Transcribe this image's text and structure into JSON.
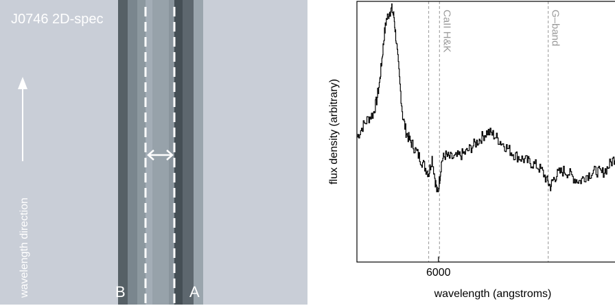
{
  "left_panel": {
    "title": "J0746 2D-spec",
    "direction_label": "wavelength direction",
    "trace_labels": [
      "B",
      "A"
    ]
  },
  "chart_data": {
    "type": "line",
    "title": "",
    "xlabel": "wavelength (angstroms)",
    "ylabel": "flux density (arbitrary)",
    "xlim": [
      5250,
      7650
    ],
    "ylim": [
      0,
      1
    ],
    "xticks": [
      6000
    ],
    "xticklabels": [
      "6000"
    ],
    "grid": false,
    "annotations": [
      {
        "label": "CaII H&K",
        "lines": [
          5910,
          6010
        ]
      },
      {
        "label": "G–band",
        "lines": [
          7010
        ]
      }
    ],
    "series": [
      {
        "name": "",
        "color": "#000000",
        "x": [
          5250,
          5300,
          5350,
          5400,
          5430,
          5460,
          5480,
          5500,
          5520,
          5550,
          5570,
          5590,
          5610,
          5640,
          5670,
          5700,
          5730,
          5760,
          5800,
          5840,
          5880,
          5910,
          5940,
          5970,
          5990,
          6010,
          6030,
          6060,
          6100,
          6150,
          6200,
          6250,
          6300,
          6350,
          6400,
          6450,
          6500,
          6550,
          6600,
          6650,
          6700,
          6750,
          6800,
          6850,
          6900,
          6950,
          7000,
          7030,
          7060,
          7100,
          7150,
          7200,
          7250,
          7300,
          7350,
          7400,
          7450,
          7500,
          7550,
          7600,
          7650
        ],
        "y": [
          0.48,
          0.52,
          0.55,
          0.57,
          0.62,
          0.7,
          0.78,
          0.87,
          0.93,
          0.96,
          0.97,
          0.94,
          0.85,
          0.7,
          0.56,
          0.5,
          0.47,
          0.45,
          0.42,
          0.39,
          0.36,
          0.34,
          0.4,
          0.31,
          0.26,
          0.32,
          0.39,
          0.41,
          0.4,
          0.4,
          0.41,
          0.42,
          0.44,
          0.46,
          0.48,
          0.5,
          0.49,
          0.47,
          0.45,
          0.43,
          0.41,
          0.4,
          0.39,
          0.38,
          0.37,
          0.35,
          0.31,
          0.29,
          0.32,
          0.34,
          0.35,
          0.34,
          0.32,
          0.31,
          0.33,
          0.34,
          0.35,
          0.34,
          0.36,
          0.39,
          0.41
        ]
      }
    ]
  }
}
